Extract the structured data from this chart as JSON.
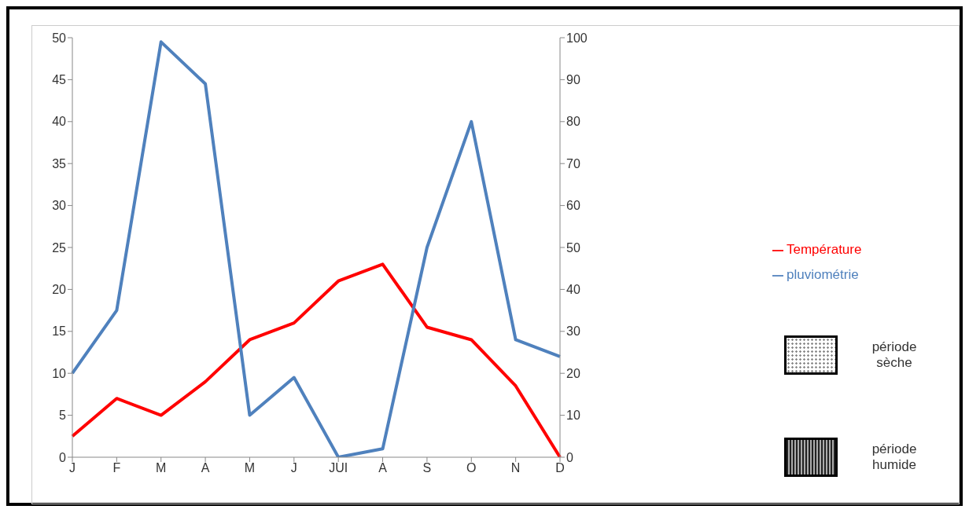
{
  "chart_data": {
    "type": "line",
    "categories": [
      "J",
      "F",
      "M",
      "A",
      "M",
      "J",
      "JUI",
      "A",
      "S",
      "O",
      "N",
      "D"
    ],
    "series": [
      {
        "name": "Température",
        "color": "#ff0000",
        "axis": "y",
        "values": [
          2.5,
          7,
          5,
          9,
          14,
          16,
          21,
          23,
          15.5,
          14,
          8.5,
          0
        ]
      },
      {
        "name": "pluviométrie",
        "color": "#4f81bd",
        "axis": "y2",
        "values": [
          20,
          35,
          99,
          89,
          10,
          19,
          0,
          2,
          50,
          80,
          28,
          24
        ]
      }
    ],
    "ylim": [
      0,
      50
    ],
    "yticks": [
      0,
      5,
      10,
      15,
      20,
      25,
      30,
      35,
      40,
      45,
      50
    ],
    "y2lim": [
      0,
      100
    ],
    "y2ticks": [
      0,
      10,
      20,
      30,
      40,
      50,
      60,
      70,
      80,
      90,
      100
    ],
    "annotations": [
      "période sèche",
      "période humide"
    ],
    "legend": "right",
    "marker": "none",
    "line_style": "solid"
  }
}
